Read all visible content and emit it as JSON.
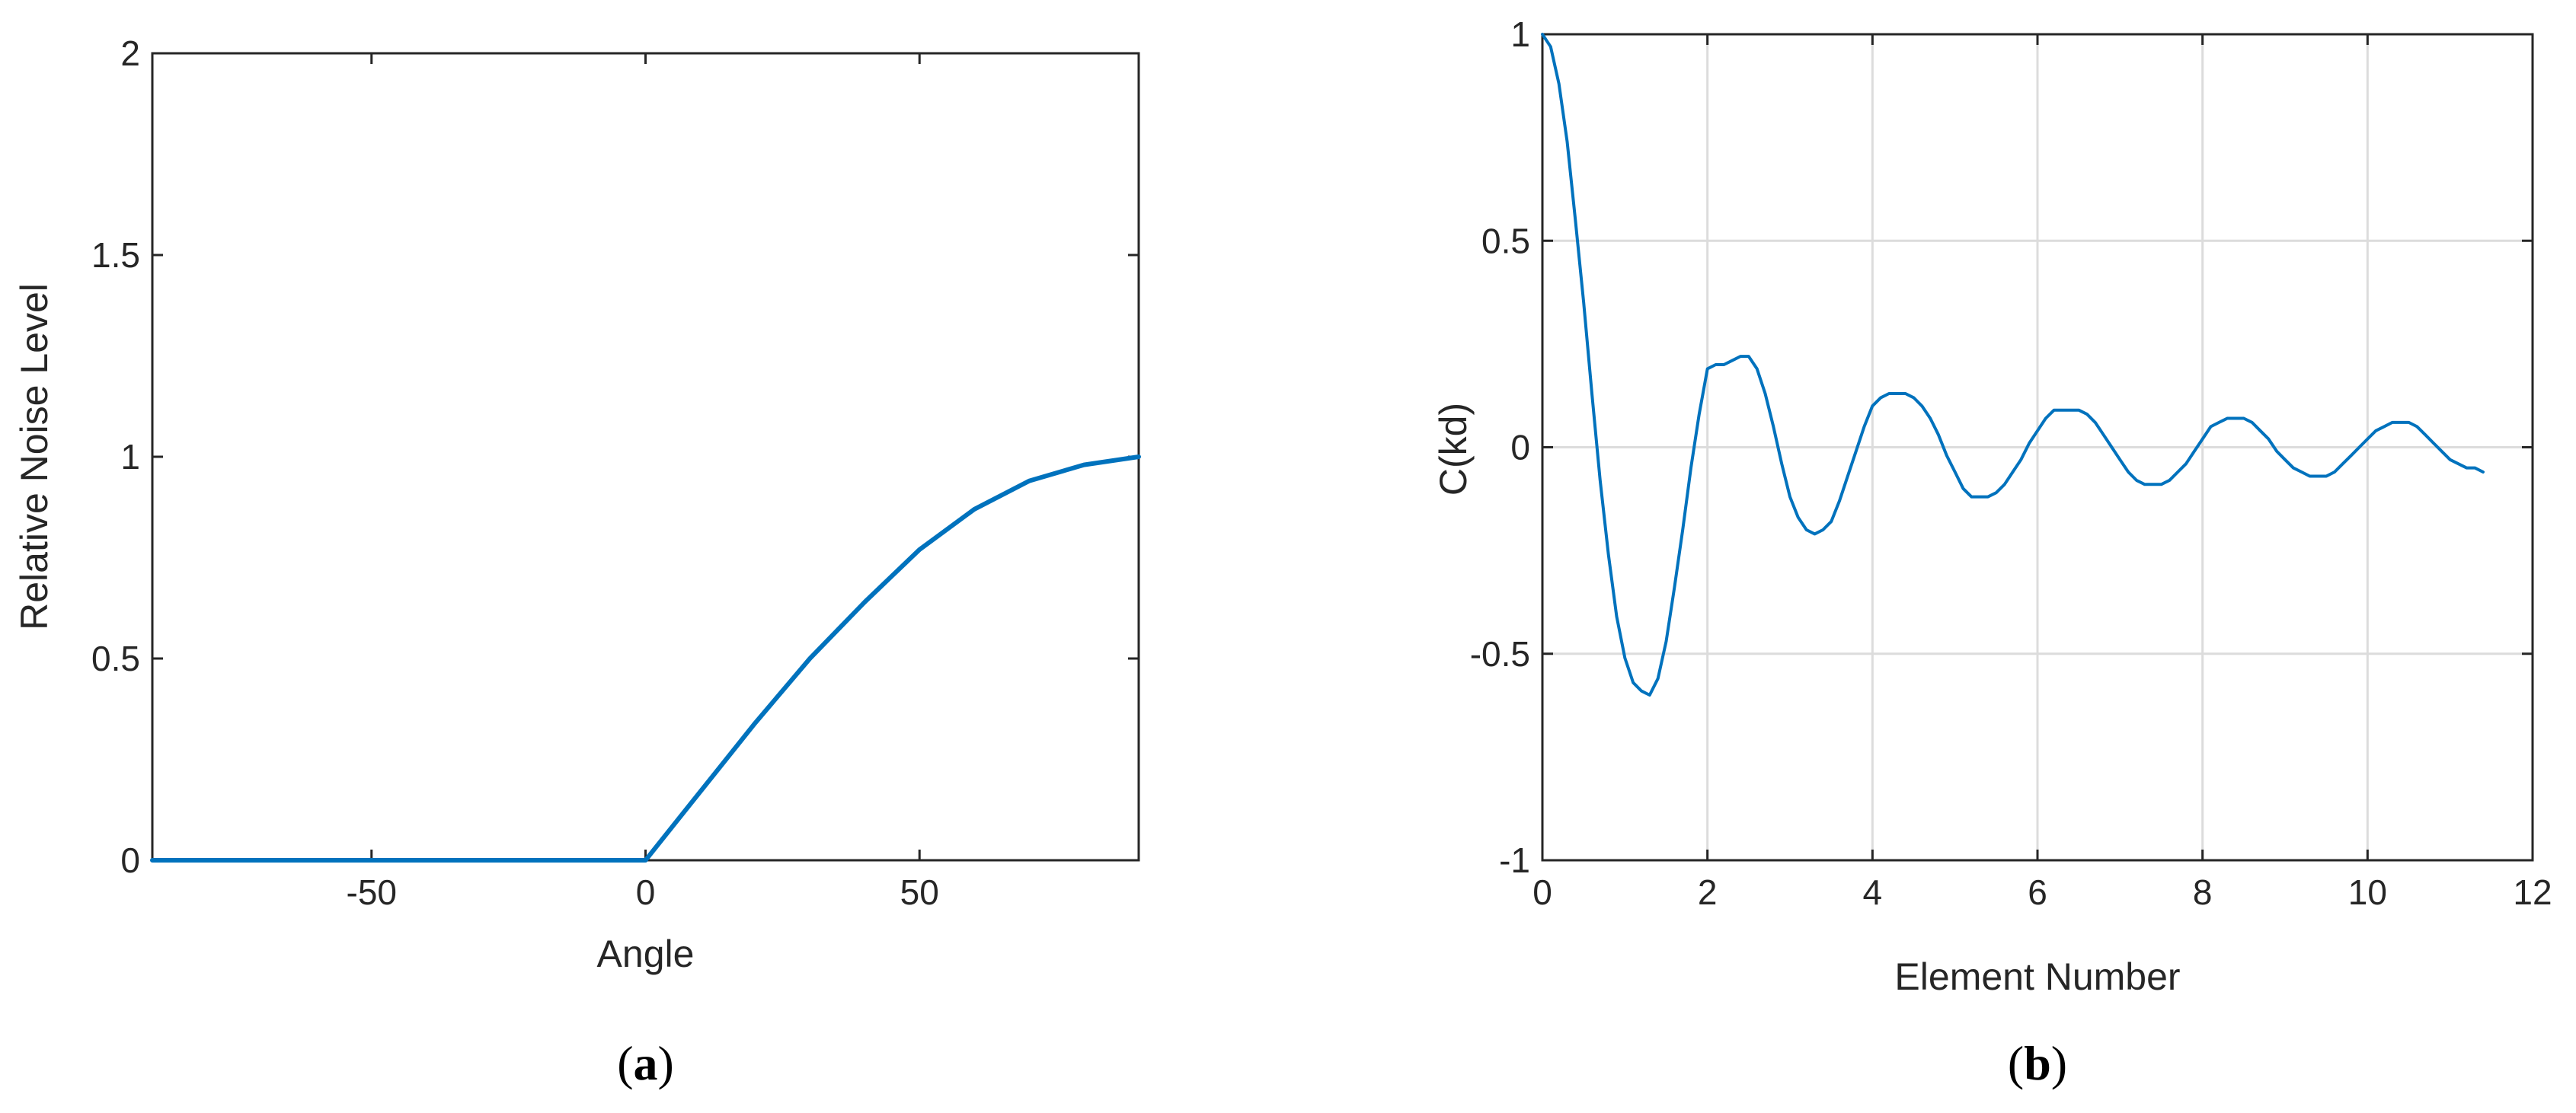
{
  "chart_data": [
    {
      "panel_label": "a",
      "type": "line",
      "xlabel": "Angle",
      "ylabel": "Relative Noise Level",
      "xlim": [
        -90,
        90
      ],
      "ylim": [
        0,
        2
      ],
      "xticks": [
        -50,
        0,
        50
      ],
      "yticks": [
        0,
        0.5,
        1,
        1.5,
        2
      ],
      "xtick_labels": [
        "-50",
        "0",
        "50"
      ],
      "ytick_labels": [
        "0",
        "0.5",
        "1",
        "1.5",
        "2"
      ],
      "grid": false,
      "line_color": "#0072BD",
      "series": [
        {
          "x": [
            -90,
            -80,
            -70,
            -60,
            -50,
            -40,
            -30,
            -20,
            -10,
            0,
            10,
            20,
            30,
            40,
            50,
            60,
            70,
            80,
            90
          ],
          "values": [
            0,
            0,
            0,
            0,
            0,
            0,
            0,
            0,
            0,
            0,
            0.17,
            0.34,
            0.5,
            0.64,
            0.77,
            0.87,
            0.94,
            0.98,
            1.0
          ]
        }
      ]
    },
    {
      "panel_label": "b",
      "type": "line",
      "xlabel": "Element Number",
      "ylabel": "C(kd)",
      "xlim": [
        0,
        12
      ],
      "ylim": [
        -1,
        1
      ],
      "xticks": [
        0,
        2,
        4,
        6,
        8,
        10,
        12
      ],
      "yticks": [
        -1,
        -0.5,
        0,
        0.5,
        1
      ],
      "xtick_labels": [
        "0",
        "2",
        "4",
        "6",
        "8",
        "10",
        "12"
      ],
      "ytick_labels": [
        "-1",
        "-0.5",
        "0",
        "0.5",
        "1"
      ],
      "grid": true,
      "line_color": "#0072BD",
      "series": [
        {
          "x": [
            0,
            0.1,
            0.2,
            0.3,
            0.4,
            0.5,
            0.6,
            0.7,
            0.8,
            0.9,
            1.0,
            1.1,
            1.2,
            1.3,
            1.4,
            1.5,
            1.6,
            1.7,
            1.8,
            1.9,
            2.0,
            2.1,
            2.2,
            2.3,
            2.4,
            2.5,
            2.6,
            2.7,
            2.8,
            2.9,
            3.0,
            3.1,
            3.2,
            3.3,
            3.4,
            3.5,
            3.6,
            3.7,
            3.8,
            3.9,
            4.0,
            4.1,
            4.2,
            4.3,
            4.4,
            4.5,
            4.6,
            4.7,
            4.8,
            4.9,
            5.0,
            5.1,
            5.2,
            5.3,
            5.4,
            5.5,
            5.6,
            5.7,
            5.8,
            5.9,
            6.0,
            6.1,
            6.2,
            6.3,
            6.4,
            6.5,
            6.6,
            6.7,
            6.8,
            6.9,
            7.0,
            7.1,
            7.2,
            7.3,
            7.4,
            7.5,
            7.6,
            7.7,
            7.8,
            7.9,
            8.0,
            8.1,
            8.2,
            8.3,
            8.4,
            8.5,
            8.6,
            8.7,
            8.8,
            8.9,
            9.0,
            9.1,
            9.2,
            9.3,
            9.4,
            9.5,
            9.6,
            9.7,
            9.8,
            9.9,
            10.0,
            10.1,
            10.2,
            10.3,
            10.4,
            10.5,
            10.6,
            10.7,
            10.8,
            10.9,
            11.0,
            11.1,
            11.2,
            11.3,
            11.4
          ],
          "values": [
            1.0,
            0.97,
            0.88,
            0.74,
            0.55,
            0.35,
            0.13,
            -0.08,
            -0.26,
            -0.41,
            -0.51,
            -0.57,
            -0.59,
            -0.6,
            -0.56,
            -0.47,
            -0.34,
            -0.2,
            -0.05,
            0.08,
            0.19,
            0.2,
            0.2,
            0.21,
            0.22,
            0.22,
            0.19,
            0.13,
            0.05,
            -0.04,
            -0.12,
            -0.17,
            -0.2,
            -0.21,
            -0.2,
            -0.18,
            -0.13,
            -0.07,
            -0.01,
            0.05,
            0.1,
            0.12,
            0.13,
            0.13,
            0.13,
            0.12,
            0.1,
            0.07,
            0.03,
            -0.02,
            -0.06,
            -0.1,
            -0.12,
            -0.12,
            -0.12,
            -0.11,
            -0.09,
            -0.06,
            -0.03,
            0.01,
            0.04,
            0.07,
            0.09,
            0.09,
            0.09,
            0.09,
            0.08,
            0.06,
            0.03,
            0.0,
            -0.03,
            -0.06,
            -0.08,
            -0.09,
            -0.09,
            -0.09,
            -0.08,
            -0.06,
            -0.04,
            -0.01,
            0.02,
            0.05,
            0.06,
            0.07,
            0.07,
            0.07,
            0.06,
            0.04,
            0.02,
            -0.01,
            -0.03,
            -0.05,
            -0.06,
            -0.07,
            -0.07,
            -0.07,
            -0.06,
            -0.04,
            -0.02,
            0.0,
            0.02,
            0.04,
            0.05,
            0.06,
            0.06,
            0.06,
            0.05,
            0.03,
            0.01,
            -0.01,
            -0.03,
            -0.04,
            -0.05,
            -0.05,
            -0.06
          ]
        }
      ]
    }
  ]
}
